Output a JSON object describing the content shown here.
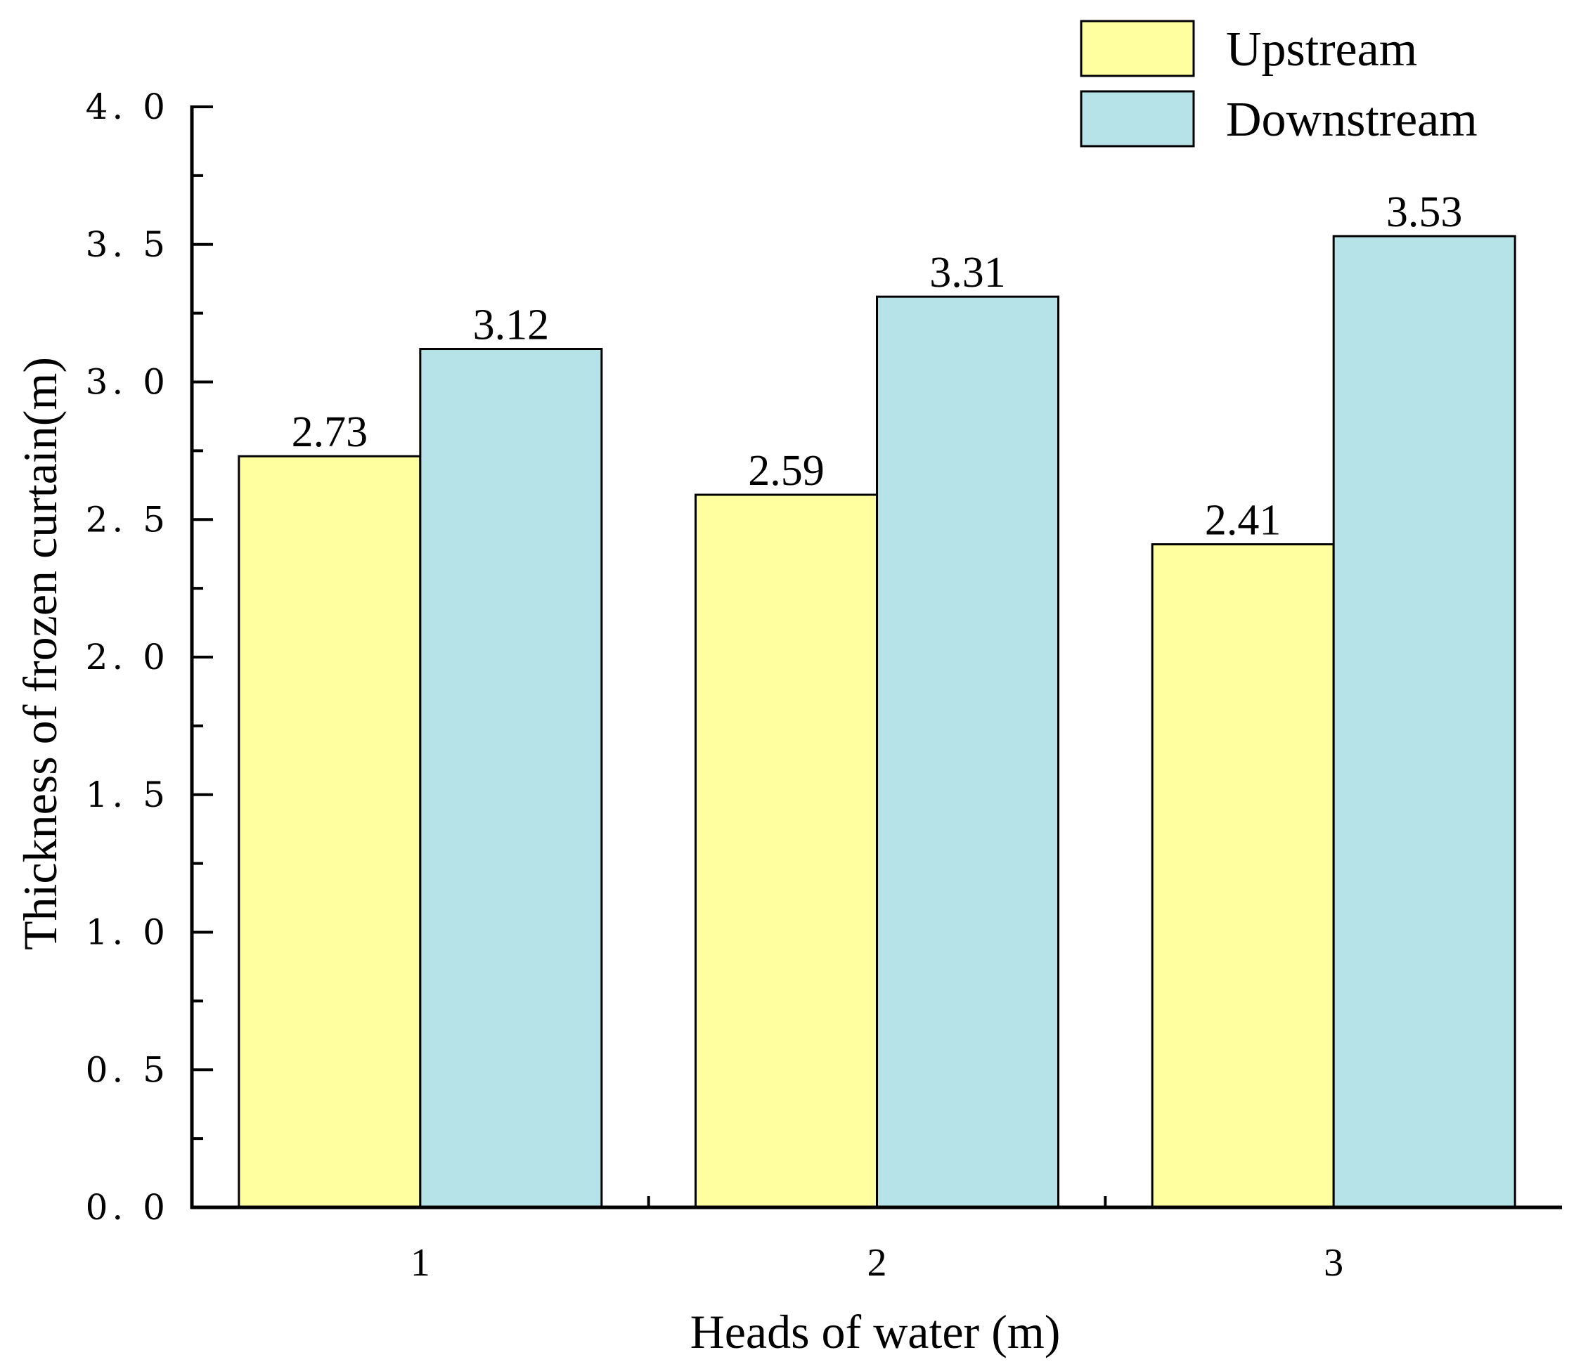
{
  "chart_data": {
    "type": "bar",
    "xlabel": "Heads of water (m)",
    "ylabel": "Thickness of frozen curtain(m)",
    "ylim": [
      0,
      4
    ],
    "yticks": [
      "0. 0",
      "0. 5",
      "1. 0",
      "1. 5",
      "2. 0",
      "2. 5",
      "3. 0",
      "3. 5",
      "4. 0"
    ],
    "ytick_values": [
      0,
      0.5,
      1.0,
      1.5,
      2.0,
      2.5,
      3.0,
      3.5,
      4.0
    ],
    "categories": [
      "1",
      "2",
      "3"
    ],
    "series": [
      {
        "name": "Upstream",
        "color": "#ffff9f",
        "values": [
          2.73,
          2.59,
          2.41
        ],
        "labels": [
          "2.73",
          "2.59",
          "2.41"
        ]
      },
      {
        "name": "Downstream",
        "color": "#b6e3e8",
        "values": [
          3.12,
          3.31,
          3.53
        ],
        "labels": [
          "3.12",
          "3.31",
          "3.53"
        ]
      }
    ],
    "legend_position": "top-right",
    "grid": false
  }
}
